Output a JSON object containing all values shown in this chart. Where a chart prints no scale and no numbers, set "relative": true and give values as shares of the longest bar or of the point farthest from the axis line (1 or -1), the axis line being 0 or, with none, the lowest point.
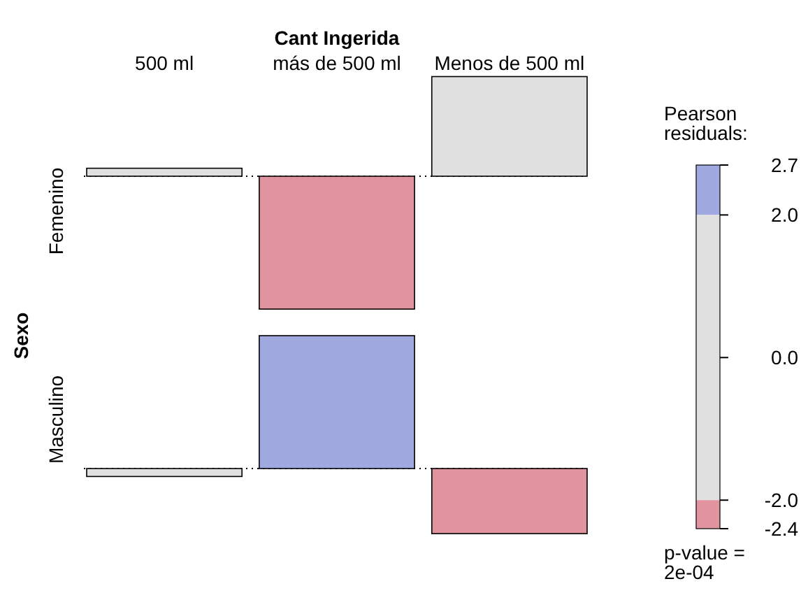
{
  "chart_data": [
    {
      "type": "bar",
      "relative": true,
      "xlabel": "Cant  Ingerida",
      "categories": [
        "500 ml",
        "más de 500 ml",
        "Menos de 500 ml"
      ],
      "series": [
        {
          "name": "Femenino",
          "colors": [
            "#e0e0e0",
            "#e0949f",
            "#e0e0e0"
          ],
          "values": [
            0.06,
            -1,
            0.75
          ]
        }
      ],
      "clabel": "Pearson residuals:",
      "clim": [
        -2.4,
        2.7
      ],
      "cticks": [
        2.7,
        {
          "value": 2,
          "label": "2.0"
        },
        {
          "value": 0,
          "label": "0.0"
        },
        {
          "value": -2,
          "label": "-2.0"
        },
        -2.4
      ],
      "annotations": [
        "p-value = 2e-04"
      ]
    },
    {
      "type": "bar",
      "relative": true,
      "ylabel": "Sexo",
      "categories": [
        null,
        null,
        null
      ],
      "series": [
        {
          "name": "Masculino",
          "colors": [
            "#e0e0e0",
            "#a0a8e0",
            "#e0949f"
          ],
          "values": [
            -0.06,
            1,
            -0.49
          ]
        }
      ]
    }
  ]
}
